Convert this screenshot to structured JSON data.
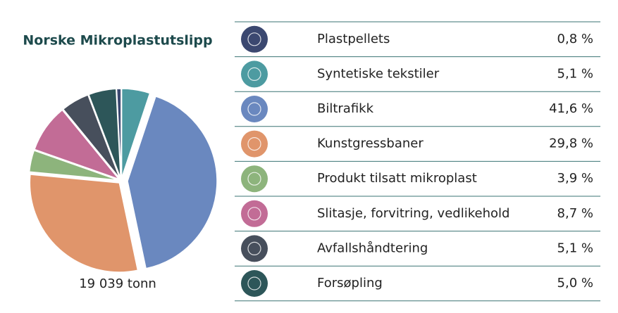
{
  "chart_data": {
    "type": "pie",
    "title": "Norske Mikroplastutslipp",
    "total_label": "19 039 tonn",
    "categories": [
      "Plastpellets",
      "Syntetiske tekstiler",
      "Biltrafikk",
      "Kunstgressbaner",
      "Produkt tilsatt mikroplast",
      "Slitasje, forvitring, vedlikehold",
      "Avfallshåndtering",
      "Forsøpling"
    ],
    "values": [
      0.8,
      5.1,
      41.6,
      29.8,
      3.9,
      8.7,
      5.1,
      5.0
    ],
    "value_labels": [
      "0,8 %",
      "5,1 %",
      "41,6 %",
      "29,8 %",
      "3,9 %",
      "8,7 %",
      "5,1 %",
      "5,0 %"
    ],
    "colors": [
      "#3b4870",
      "#4d9ba1",
      "#6a88bf",
      "#e0956b",
      "#8db47c",
      "#c26c96",
      "#474f5c",
      "#2d5659"
    ]
  }
}
